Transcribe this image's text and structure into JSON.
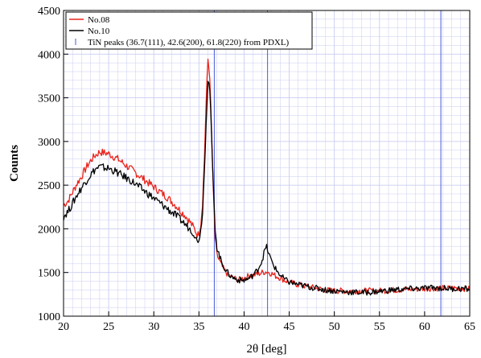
{
  "chart_data": {
    "type": "line",
    "xlabel": "2θ [deg]",
    "ylabel": "Counts",
    "xlim": [
      20,
      65
    ],
    "ylim": [
      1000,
      4500
    ],
    "x_ticks": [
      20,
      25,
      30,
      35,
      40,
      45,
      50,
      55,
      60,
      65
    ],
    "y_ticks": [
      1000,
      1500,
      2000,
      2500,
      3000,
      3500,
      4000,
      4500
    ],
    "grid": true,
    "legend_position": "top-left",
    "colors": {
      "No.08": "#e8231b",
      "No.10": "#000000",
      "peaks": "#4a5bd8",
      "grid": "#c9cdf0"
    },
    "series": [
      {
        "name": "No.08",
        "color": "#e8231b",
        "points": [
          [
            20.0,
            2270
          ],
          [
            20.5,
            2320
          ],
          [
            21.0,
            2420
          ],
          [
            21.5,
            2520
          ],
          [
            22.0,
            2600
          ],
          [
            22.5,
            2700
          ],
          [
            23.0,
            2780
          ],
          [
            23.5,
            2840
          ],
          [
            24.0,
            2880
          ],
          [
            24.5,
            2870
          ],
          [
            25.0,
            2860
          ],
          [
            25.5,
            2830
          ],
          [
            26.0,
            2800
          ],
          [
            26.5,
            2760
          ],
          [
            27.0,
            2720
          ],
          [
            27.5,
            2680
          ],
          [
            28.0,
            2640
          ],
          [
            28.5,
            2600
          ],
          [
            29.0,
            2560
          ],
          [
            29.5,
            2520
          ],
          [
            30.0,
            2480
          ],
          [
            30.5,
            2440
          ],
          [
            31.0,
            2400
          ],
          [
            31.5,
            2360
          ],
          [
            32.0,
            2310
          ],
          [
            32.5,
            2260
          ],
          [
            33.0,
            2200
          ],
          [
            33.5,
            2150
          ],
          [
            34.0,
            2080
          ],
          [
            34.5,
            2000
          ],
          [
            34.8,
            1930
          ],
          [
            35.0,
            1950
          ],
          [
            35.2,
            2050
          ],
          [
            35.4,
            2300
          ],
          [
            35.6,
            2800
          ],
          [
            35.8,
            3450
          ],
          [
            36.0,
            3940
          ],
          [
            36.2,
            3750
          ],
          [
            36.4,
            3100
          ],
          [
            36.6,
            2400
          ],
          [
            36.8,
            1900
          ],
          [
            37.0,
            1700
          ],
          [
            37.5,
            1580
          ],
          [
            38.0,
            1500
          ],
          [
            38.5,
            1450
          ],
          [
            39.0,
            1430
          ],
          [
            39.5,
            1420
          ],
          [
            40.0,
            1440
          ],
          [
            40.5,
            1460
          ],
          [
            41.0,
            1470
          ],
          [
            41.5,
            1480
          ],
          [
            42.0,
            1500
          ],
          [
            42.5,
            1510
          ],
          [
            43.0,
            1490
          ],
          [
            43.5,
            1460
          ],
          [
            44.0,
            1440
          ],
          [
            44.5,
            1410
          ],
          [
            45.0,
            1390
          ],
          [
            46.0,
            1360
          ],
          [
            47.0,
            1340
          ],
          [
            48.0,
            1320
          ],
          [
            49.0,
            1300
          ],
          [
            50.0,
            1290
          ],
          [
            51.0,
            1290
          ],
          [
            52.0,
            1290
          ],
          [
            53.0,
            1290
          ],
          [
            54.0,
            1290
          ],
          [
            55.0,
            1290
          ],
          [
            56.0,
            1295
          ],
          [
            57.0,
            1300
          ],
          [
            58.0,
            1305
          ],
          [
            59.0,
            1310
          ],
          [
            60.0,
            1315
          ],
          [
            61.0,
            1320
          ],
          [
            62.0,
            1320
          ],
          [
            63.0,
            1320
          ],
          [
            64.0,
            1320
          ],
          [
            65.0,
            1310
          ]
        ]
      },
      {
        "name": "No.10",
        "color": "#000000",
        "points": [
          [
            20.0,
            2140
          ],
          [
            20.5,
            2200
          ],
          [
            21.0,
            2290
          ],
          [
            21.5,
            2390
          ],
          [
            22.0,
            2470
          ],
          [
            22.5,
            2550
          ],
          [
            23.0,
            2620
          ],
          [
            23.5,
            2680
          ],
          [
            24.0,
            2710
          ],
          [
            24.5,
            2700
          ],
          [
            25.0,
            2690
          ],
          [
            25.5,
            2670
          ],
          [
            26.0,
            2640
          ],
          [
            26.5,
            2610
          ],
          [
            27.0,
            2580
          ],
          [
            27.5,
            2550
          ],
          [
            28.0,
            2510
          ],
          [
            28.5,
            2470
          ],
          [
            29.0,
            2430
          ],
          [
            29.5,
            2390
          ],
          [
            30.0,
            2350
          ],
          [
            30.5,
            2310
          ],
          [
            31.0,
            2270
          ],
          [
            31.5,
            2230
          ],
          [
            32.0,
            2190
          ],
          [
            32.5,
            2150
          ],
          [
            33.0,
            2100
          ],
          [
            33.5,
            2050
          ],
          [
            34.0,
            2000
          ],
          [
            34.5,
            1930
          ],
          [
            34.8,
            1860
          ],
          [
            35.0,
            1880
          ],
          [
            35.2,
            1980
          ],
          [
            35.4,
            2200
          ],
          [
            35.6,
            2650
          ],
          [
            35.8,
            3250
          ],
          [
            36.0,
            3720
          ],
          [
            36.2,
            3600
          ],
          [
            36.4,
            3050
          ],
          [
            36.6,
            2450
          ],
          [
            36.8,
            2000
          ],
          [
            37.0,
            1780
          ],
          [
            37.5,
            1620
          ],
          [
            38.0,
            1520
          ],
          [
            38.5,
            1460
          ],
          [
            39.0,
            1430
          ],
          [
            39.5,
            1410
          ],
          [
            40.0,
            1410
          ],
          [
            40.5,
            1430
          ],
          [
            41.0,
            1470
          ],
          [
            41.5,
            1530
          ],
          [
            42.0,
            1640
          ],
          [
            42.3,
            1760
          ],
          [
            42.5,
            1790
          ],
          [
            42.7,
            1730
          ],
          [
            43.0,
            1640
          ],
          [
            43.5,
            1540
          ],
          [
            44.0,
            1470
          ],
          [
            44.5,
            1420
          ],
          [
            45.0,
            1390
          ],
          [
            46.0,
            1360
          ],
          [
            47.0,
            1340
          ],
          [
            48.0,
            1320
          ],
          [
            49.0,
            1300
          ],
          [
            50.0,
            1290
          ],
          [
            51.0,
            1280
          ],
          [
            52.0,
            1275
          ],
          [
            53.0,
            1270
          ],
          [
            54.0,
            1275
          ],
          [
            55.0,
            1285
          ],
          [
            56.0,
            1295
          ],
          [
            57.0,
            1305
          ],
          [
            58.0,
            1310
          ],
          [
            59.0,
            1315
          ],
          [
            60.0,
            1320
          ],
          [
            61.0,
            1325
          ],
          [
            62.0,
            1320
          ],
          [
            63.0,
            1315
          ],
          [
            64.0,
            1315
          ],
          [
            65.0,
            1310
          ]
        ]
      }
    ],
    "peak_lines": {
      "label": "TiN peaks (36.7(111), 42.6(200), 61.8(220) from PDXL)",
      "x": [
        36.7,
        42.6,
        61.8
      ]
    }
  }
}
